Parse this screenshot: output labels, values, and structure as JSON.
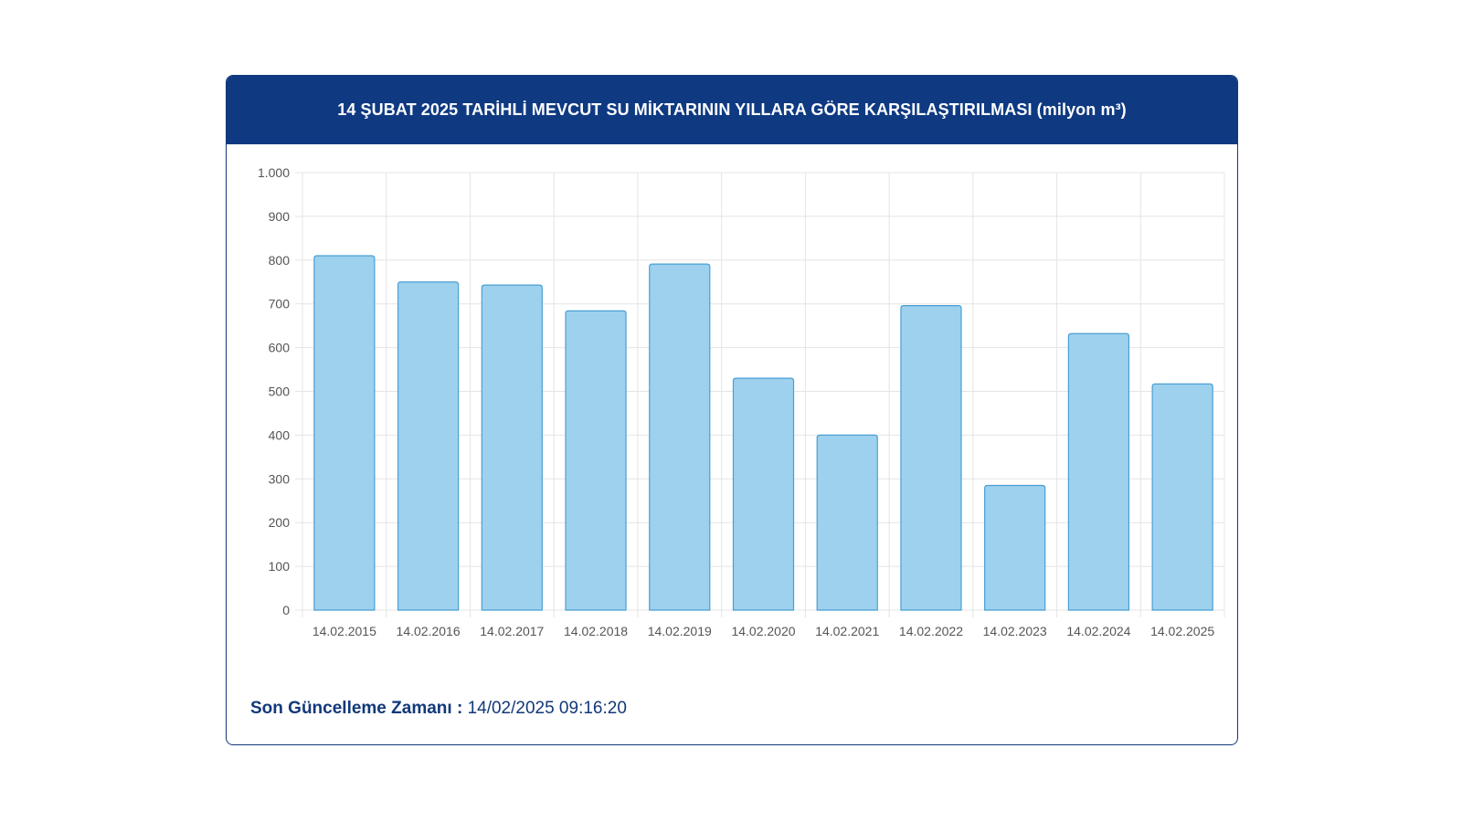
{
  "header": {
    "title": "14 ŞUBAT 2025 TARİHLİ MEVCUT SU MİKTARININ YILLARA GÖRE KARŞILAŞTIRILMASI (milyon m³)"
  },
  "footer": {
    "label": "Son Güncelleme Zamanı :",
    "value": "14/02/2025 09:16:20"
  },
  "colors": {
    "header_bg": "#0f3a82",
    "bar_fill": "#9dd1ee",
    "bar_stroke": "#4a9fd3",
    "grid": "#e4e4e4",
    "text": "#555555"
  },
  "chart_data": {
    "type": "bar",
    "title": "14 ŞUBAT 2025 TARİHLİ MEVCUT SU MİKTARININ YILLARA GÖRE KARŞILAŞTIRILMASI (milyon m³)",
    "categories": [
      "14.02.2015",
      "14.02.2016",
      "14.02.2017",
      "14.02.2018",
      "14.02.2019",
      "14.02.2020",
      "14.02.2021",
      "14.02.2022",
      "14.02.2023",
      "14.02.2024",
      "14.02.2025"
    ],
    "values": [
      810,
      750,
      743,
      684,
      791,
      530,
      400,
      696,
      285,
      632,
      517
    ],
    "ylim": [
      0,
      1000
    ],
    "yticks": [
      0,
      100,
      200,
      300,
      400,
      500,
      600,
      700,
      800,
      900,
      1000
    ],
    "ytick_labels": [
      "0",
      "100",
      "200",
      "300",
      "400",
      "500",
      "600",
      "700",
      "800",
      "900",
      "1.000"
    ],
    "xlabel": "",
    "ylabel": "",
    "grid": true,
    "legend": "none"
  }
}
